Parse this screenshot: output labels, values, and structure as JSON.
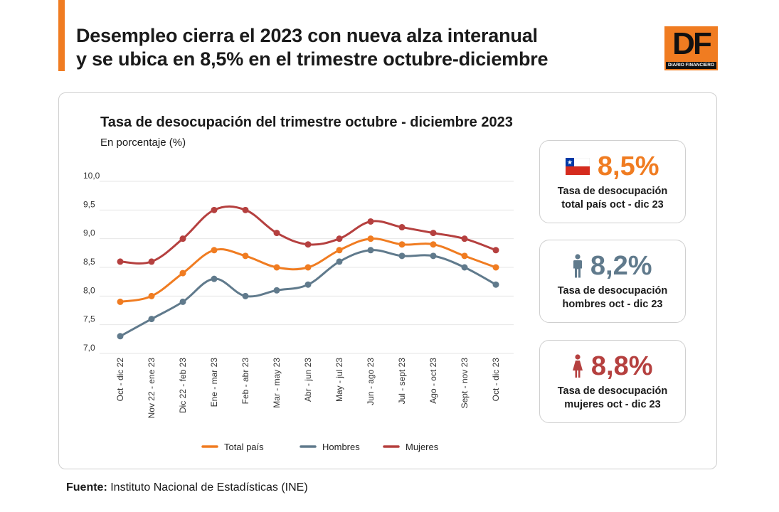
{
  "headline": {
    "line1": "Desempleo cierra el 2023 con nueva alza interanual",
    "line2": "y se ubica en 8,5% en el trimestre octubre-diciembre"
  },
  "logo": {
    "letters": "DF",
    "name": "DIARIO FINANCIERO"
  },
  "colors": {
    "accent": "#f07c21",
    "total": "#f07c21",
    "hombres": "#607a8c",
    "mujeres": "#b5403f",
    "grid": "#e6e6e6"
  },
  "chart_data": {
    "type": "line",
    "title": "Tasa de desocupación del trimestre octubre - diciembre 2023",
    "subtitle": "En porcentaje (%)",
    "categories": [
      "Oct - dic 22",
      "Nov 22 - ene 23",
      "Dic 22 - feb 23",
      "Ene - mar 23",
      "Feb - abr 23",
      "Mar - may 23",
      "Abr - jun 23",
      "May - jul 23",
      "Jun - ago 23",
      "Jul - sept 23",
      "Ago - oct 23",
      "Sept - nov 23",
      "Oct - dic 23"
    ],
    "ylim": [
      7.0,
      10.0
    ],
    "yticks": [
      "7,0",
      "7,5",
      "8,0",
      "8,5",
      "9,0",
      "9,5",
      "10,0"
    ],
    "grid": true,
    "legend_position": "bottom",
    "series": [
      {
        "name": "Total país",
        "color": "#f07c21",
        "values": [
          7.9,
          8.0,
          8.4,
          8.8,
          8.7,
          8.5,
          8.5,
          8.8,
          9.0,
          8.9,
          8.9,
          8.7,
          8.5
        ]
      },
      {
        "name": "Hombres",
        "color": "#607a8c",
        "values": [
          7.3,
          7.6,
          7.9,
          8.3,
          8.0,
          8.1,
          8.2,
          8.6,
          8.8,
          8.7,
          8.7,
          8.5,
          8.2
        ]
      },
      {
        "name": "Mujeres",
        "color": "#b5403f",
        "values": [
          8.6,
          8.6,
          9.0,
          9.5,
          9.5,
          9.1,
          8.9,
          9.0,
          9.3,
          9.2,
          9.1,
          9.0,
          8.8
        ]
      }
    ]
  },
  "stats": {
    "total": {
      "value": "8,5%",
      "label1": "Tasa de desocupación",
      "label2": "total país oct - dic 23",
      "color": "#f07c21",
      "icon": "chile-flag-icon"
    },
    "hombres": {
      "value": "8,2%",
      "label1": "Tasa de desocupación",
      "label2": "hombres oct - dic 23",
      "color": "#607a8c",
      "icon": "man-icon"
    },
    "mujeres": {
      "value": "8,8%",
      "label1": "Tasa de desocupación",
      "label2": "mujeres oct - dic 23",
      "color": "#b5403f",
      "icon": "woman-icon"
    }
  },
  "source": {
    "label": "Fuente:",
    "text": " Instituto Nacional de Estadísticas (INE)"
  }
}
